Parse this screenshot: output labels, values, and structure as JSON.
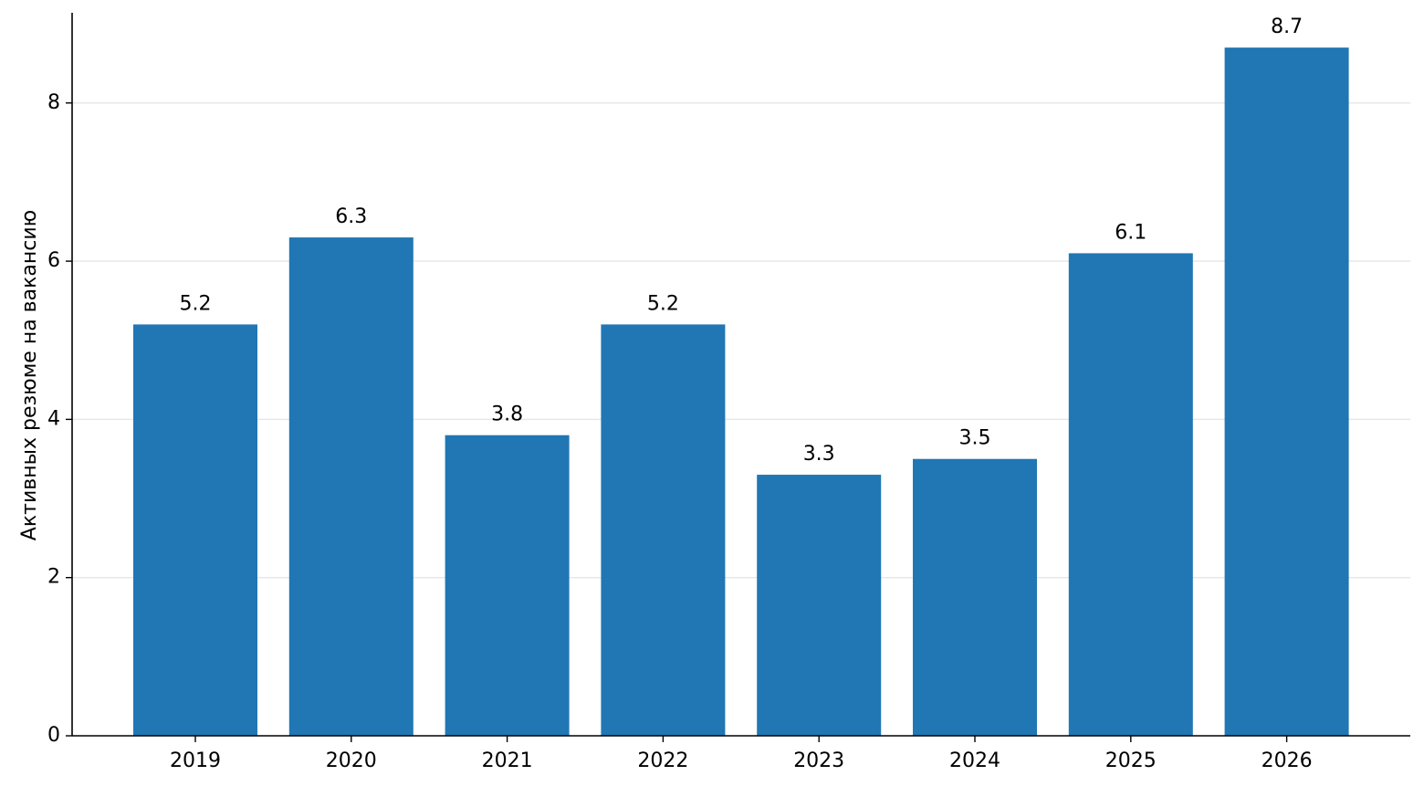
{
  "chart_data": {
    "type": "bar",
    "title": "",
    "xlabel": "",
    "ylabel": "Активных резюме на вакансию",
    "categories": [
      "2019",
      "2020",
      "2021",
      "2022",
      "2023",
      "2024",
      "2025",
      "2026"
    ],
    "values": [
      5.2,
      6.3,
      3.8,
      5.2,
      3.3,
      3.5,
      6.1,
      8.7
    ],
    "value_labels": [
      "5.2",
      "6.3",
      "3.8",
      "5.2",
      "3.3",
      "3.5",
      "6.1",
      "8.7"
    ],
    "ylim": [
      0,
      9.14
    ],
    "yticks": [
      0,
      2,
      4,
      6,
      8
    ],
    "ytick_labels": [
      "0",
      "2",
      "4",
      "6",
      "8"
    ],
    "grid": "horizontal",
    "bar_color": "#2077b4"
  }
}
